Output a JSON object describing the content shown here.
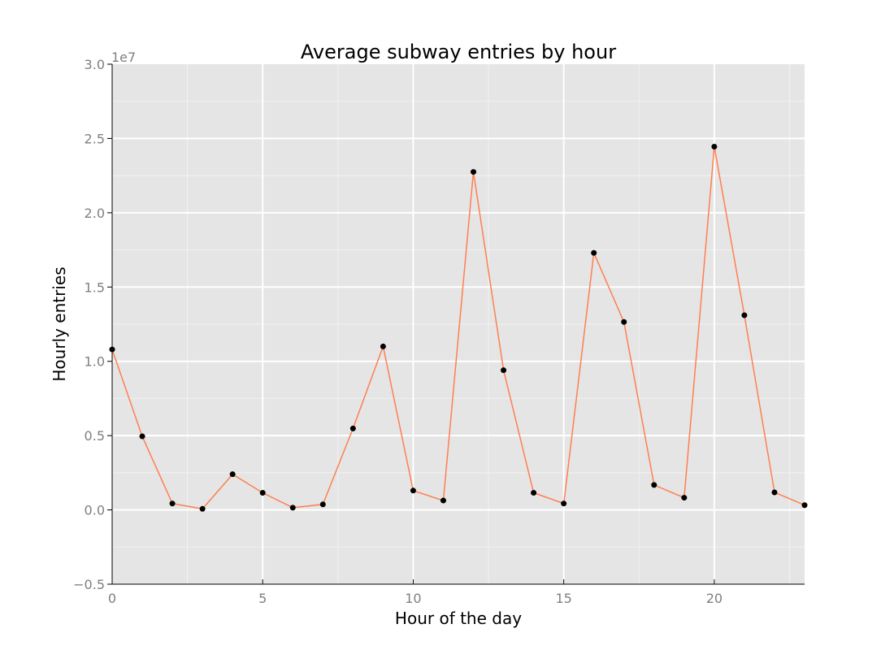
{
  "chart_data": {
    "type": "line",
    "title": "Average subway entries by hour",
    "xlabel": "Hour of the day",
    "ylabel": "Hourly entries",
    "y_offset_label": "1e7",
    "xlim": [
      0,
      23
    ],
    "ylim": [
      -5000000,
      30000000
    ],
    "x_ticks": [
      0,
      5,
      10,
      15,
      20
    ],
    "x_tick_labels": [
      "0",
      "5",
      "10",
      "15",
      "20"
    ],
    "y_ticks": [
      -5000000,
      0,
      5000000,
      10000000,
      15000000,
      20000000,
      25000000,
      30000000
    ],
    "y_tick_labels": [
      "−0.5",
      "0.0",
      "0.5",
      "1.0",
      "1.5",
      "2.0",
      "2.5",
      "3.0"
    ],
    "grid": true,
    "background": "#e5e5e5",
    "line_color": "#ff7f50",
    "point_color": "#000000",
    "series": [
      {
        "x": [
          0,
          1,
          2,
          3,
          4,
          5,
          6,
          7,
          8,
          9,
          10,
          11,
          12,
          13,
          14,
          15,
          16,
          17,
          18,
          19,
          20,
          21,
          22,
          23
        ],
        "values": [
          10800000,
          4950000,
          430000,
          70000,
          2400000,
          1150000,
          150000,
          370000,
          5480000,
          11000000,
          1300000,
          630000,
          22750000,
          9400000,
          1150000,
          430000,
          17300000,
          12650000,
          1680000,
          820000,
          24450000,
          13100000,
          1180000,
          320000
        ]
      }
    ]
  }
}
